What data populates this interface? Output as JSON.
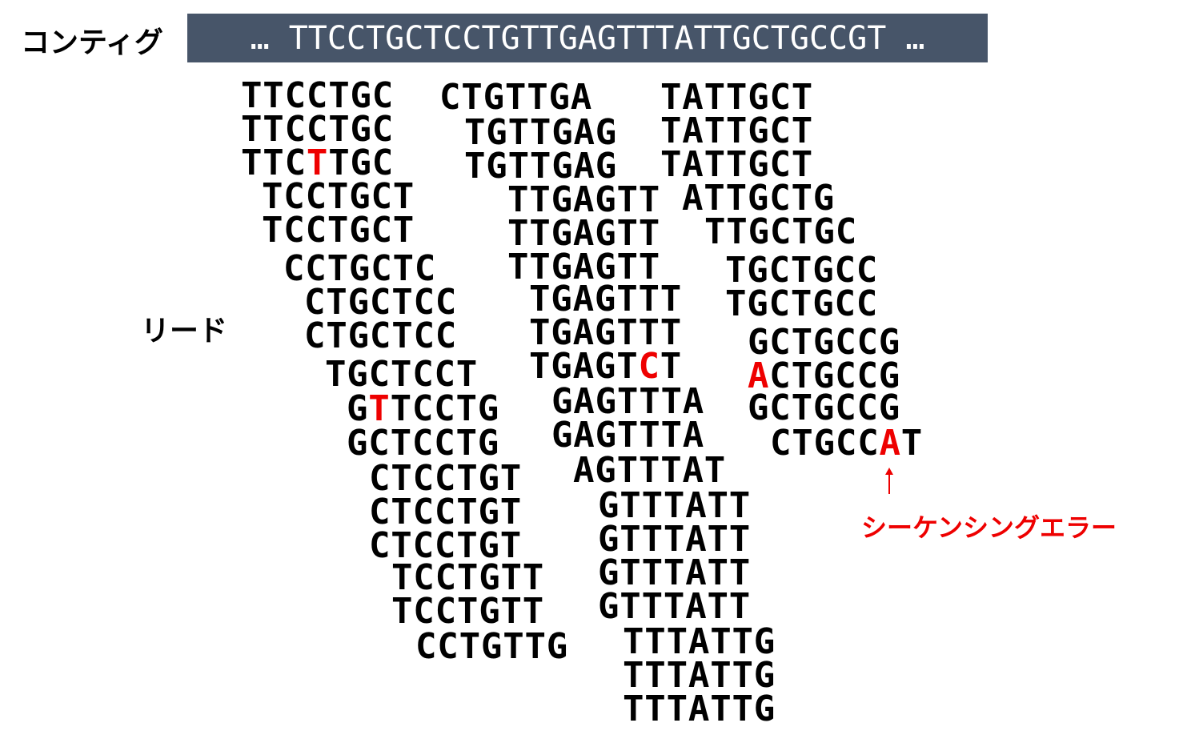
{
  "labels": {
    "contig": "コンティグ",
    "reads": "リード",
    "error": "シーケンシングエラー"
  },
  "contig": {
    "sequence": "… TTCCTGCTCCTGTTGAGTTTATTGCTGCCGT …",
    "background": "#475569"
  },
  "colors": {
    "error": "#ee0000",
    "text": "#000000"
  },
  "arrow_icon": "up-arrow",
  "reads": [
    {
      "seq": "TTCCTGC",
      "error_pos": null
    },
    {
      "seq": "TTCCTGC",
      "error_pos": null
    },
    {
      "seq": "TTCTTGC",
      "error_pos": 3
    },
    {
      "seq": "TCCTGCT",
      "error_pos": null
    },
    {
      "seq": "TCCTGCT",
      "error_pos": null
    },
    {
      "seq": "CCTGCTC",
      "error_pos": null
    },
    {
      "seq": "CTGCTCC",
      "error_pos": null
    },
    {
      "seq": "CTGCTCC",
      "error_pos": null
    },
    {
      "seq": "TGCTCCT",
      "error_pos": null
    },
    {
      "seq": "GTTCCTG",
      "error_pos": 1
    },
    {
      "seq": "GCTCCTG",
      "error_pos": null
    },
    {
      "seq": "CTCCTGT",
      "error_pos": null
    },
    {
      "seq": "CTCCTGT",
      "error_pos": null
    },
    {
      "seq": "CTCCTGT",
      "error_pos": null
    },
    {
      "seq": "TCCTGTT",
      "error_pos": null
    },
    {
      "seq": "TCCTGTT",
      "error_pos": null
    },
    {
      "seq": "CCTGTTG",
      "error_pos": null
    },
    {
      "seq": "CTGTTGA",
      "error_pos": null
    },
    {
      "seq": "TGTTGAG",
      "error_pos": null
    },
    {
      "seq": "TGTTGAG",
      "error_pos": null
    },
    {
      "seq": "TTGAGTT",
      "error_pos": null
    },
    {
      "seq": "TTGAGTT",
      "error_pos": null
    },
    {
      "seq": "TTGAGTT",
      "error_pos": null
    },
    {
      "seq": "TGAGTTT",
      "error_pos": null
    },
    {
      "seq": "TGAGTTT",
      "error_pos": null
    },
    {
      "seq": "TGAGTCT",
      "error_pos": 5
    },
    {
      "seq": "GAGTTTA",
      "error_pos": null
    },
    {
      "seq": "GAGTTTA",
      "error_pos": null
    },
    {
      "seq": "AGTTTAT",
      "error_pos": null
    },
    {
      "seq": "GTTTATT",
      "error_pos": null
    },
    {
      "seq": "GTTTATT",
      "error_pos": null
    },
    {
      "seq": "GTTTATT",
      "error_pos": null
    },
    {
      "seq": "GTTTATT",
      "error_pos": null
    },
    {
      "seq": "TTTATTG",
      "error_pos": null
    },
    {
      "seq": "TTTATTG",
      "error_pos": null
    },
    {
      "seq": "TTTATTG",
      "error_pos": null
    },
    {
      "seq": "TATTGCT",
      "error_pos": null
    },
    {
      "seq": "TATTGCT",
      "error_pos": null
    },
    {
      "seq": "TATTGCT",
      "error_pos": null
    },
    {
      "seq": "ATTGCTG",
      "error_pos": null
    },
    {
      "seq": "TTGCTGC",
      "error_pos": null
    },
    {
      "seq": "TGCTGCC",
      "error_pos": null
    },
    {
      "seq": "TGCTGCC",
      "error_pos": null
    },
    {
      "seq": "GCTGCCG",
      "error_pos": null
    },
    {
      "seq": "ACTGCCG",
      "error_pos": 0
    },
    {
      "seq": "GCTGCCG",
      "error_pos": null
    },
    {
      "seq": "CTGCCAT",
      "error_pos": 5
    }
  ]
}
